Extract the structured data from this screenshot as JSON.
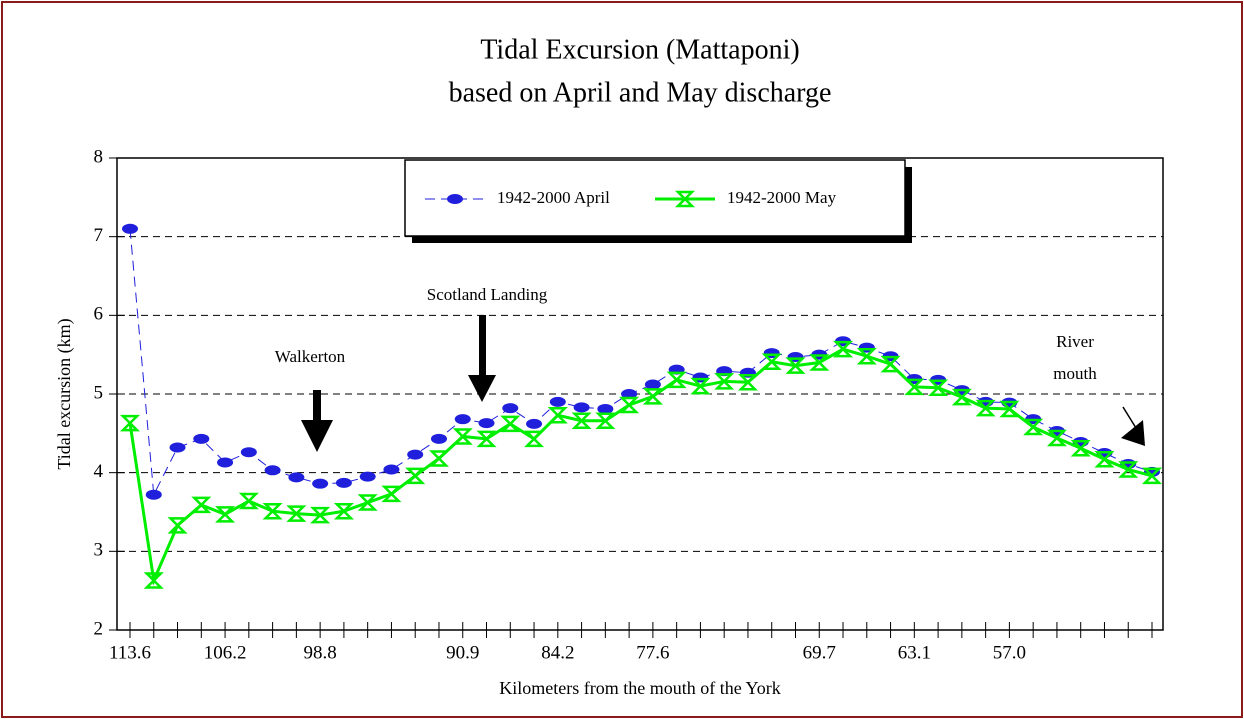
{
  "chart_data": {
    "type": "line",
    "title": [
      "Tidal Excursion (Mattaponi)",
      "based on April and May discharge"
    ],
    "x_label": "Kilometers from the mouth of the York",
    "y_label": "Tidal excursion (km)",
    "categories": [
      "113.6",
      null,
      null,
      null,
      "106.2",
      null,
      null,
      null,
      "98.8",
      null,
      null,
      null,
      null,
      null,
      "90.9",
      null,
      null,
      null,
      "84.2",
      null,
      null,
      null,
      "77.6",
      null,
      null,
      null,
      null,
      null,
      null,
      "69.7",
      null,
      null,
      null,
      "63.1",
      null,
      null,
      null,
      "57.0",
      null,
      null,
      null,
      null,
      null,
      null
    ],
    "series": [
      {
        "name": "1942-2000 April",
        "color": "#1f1fdc",
        "values": [
          7.1,
          3.72,
          4.32,
          4.43,
          4.13,
          4.26,
          4.03,
          3.94,
          3.86,
          3.87,
          3.95,
          4.04,
          4.23,
          4.43,
          4.68,
          4.63,
          4.82,
          4.62,
          4.9,
          4.83,
          4.81,
          5.0,
          5.12,
          5.31,
          5.21,
          5.29,
          5.27,
          5.52,
          5.47,
          5.5,
          5.67,
          5.59,
          5.48,
          5.19,
          5.18,
          5.05,
          4.9,
          4.89,
          4.68,
          4.53,
          4.39,
          4.25,
          4.11,
          4.01
        ]
      },
      {
        "name": "1942-2000 May",
        "color": "#00ee00",
        "values": [
          4.63,
          2.63,
          3.33,
          3.59,
          3.47,
          3.64,
          3.51,
          3.48,
          3.46,
          3.51,
          3.62,
          3.73,
          3.96,
          4.18,
          4.46,
          4.43,
          4.62,
          4.43,
          4.73,
          4.66,
          4.66,
          4.86,
          4.97,
          5.18,
          5.1,
          5.16,
          5.15,
          5.41,
          5.36,
          5.4,
          5.57,
          5.48,
          5.38,
          5.09,
          5.08,
          4.96,
          4.82,
          4.81,
          4.58,
          4.44,
          4.31,
          4.17,
          4.04,
          3.96
        ]
      }
    ],
    "ylim": [
      2,
      8
    ],
    "yticks": [
      2,
      3,
      4,
      5,
      6,
      7,
      8
    ],
    "grid": true,
    "legend": "top",
    "annotations": [
      {
        "text": "Walkerton"
      },
      {
        "text": "Scotland Landing"
      },
      {
        "lines": [
          "River",
          "mouth"
        ]
      }
    ]
  }
}
